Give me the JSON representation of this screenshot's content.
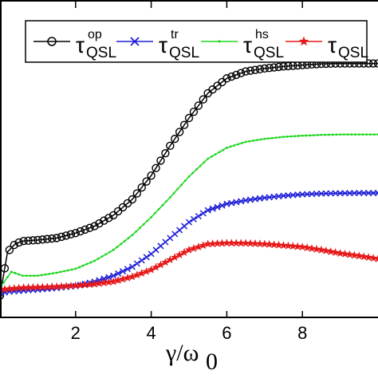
{
  "chart_data": {
    "type": "line",
    "title": "",
    "xlabel": "γ/ω0",
    "ylabel": "",
    "xlim": [
      0,
      10
    ],
    "xticks": [
      "2",
      "4",
      "6",
      "8"
    ],
    "grid": false,
    "legend_position": "top",
    "series": [
      {
        "name": "τQSL^op",
        "color": "#000000",
        "marker": "circle",
        "x": [
          0.0,
          0.2,
          0.4,
          0.6,
          1.0,
          1.5,
          2.0,
          2.5,
          3.0,
          3.5,
          4.0,
          4.5,
          5.0,
          5.5,
          6.0,
          6.5,
          7.0,
          7.5,
          8.0,
          8.5,
          9.0,
          9.5,
          10.0
        ],
        "y": [
          0.36,
          0.58,
          0.62,
          0.635,
          0.64,
          0.65,
          0.675,
          0.71,
          0.765,
          0.845,
          0.965,
          1.115,
          1.255,
          1.38,
          1.455,
          1.49,
          1.505,
          1.515,
          1.522,
          1.528,
          1.53,
          1.53,
          1.53
        ]
      },
      {
        "name": "τQSL^tr",
        "color": "#1f1fd6",
        "marker": "x",
        "x": [
          0.0,
          0.2,
          0.4,
          0.6,
          1.0,
          1.5,
          2.0,
          2.5,
          3.0,
          3.5,
          4.0,
          4.5,
          5.0,
          5.5,
          6.0,
          6.5,
          7.0,
          7.5,
          8.0,
          8.5,
          9.0,
          9.5,
          10.0
        ],
        "y": [
          0.37,
          0.38,
          0.382,
          0.385,
          0.39,
          0.398,
          0.408,
          0.43,
          0.46,
          0.505,
          0.57,
          0.65,
          0.73,
          0.79,
          0.822,
          0.84,
          0.853,
          0.863,
          0.87,
          0.874,
          0.876,
          0.877,
          0.877
        ]
      },
      {
        "name": "τQSL^hs",
        "color": "#1fd61f",
        "marker": "dot",
        "x": [
          0.0,
          0.3,
          0.6,
          1.0,
          1.5,
          2.0,
          2.5,
          3.0,
          3.5,
          4.0,
          4.5,
          5.0,
          5.5,
          6.0,
          6.5,
          7.0,
          7.5,
          8.0,
          8.5,
          9.0,
          9.5,
          10.0
        ],
        "y": [
          0.4,
          0.48,
          0.46,
          0.46,
          0.475,
          0.495,
          0.535,
          0.59,
          0.665,
          0.755,
          0.855,
          0.96,
          1.05,
          1.105,
          1.135,
          1.15,
          1.16,
          1.166,
          1.17,
          1.172,
          1.172,
          1.172
        ]
      },
      {
        "name": "τQSL",
        "color": "#e61a1a",
        "marker": "star",
        "x": [
          0.0,
          0.3,
          0.6,
          1.0,
          1.5,
          2.0,
          2.5,
          3.0,
          3.5,
          4.0,
          4.5,
          5.0,
          5.5,
          6.0,
          6.5,
          7.0,
          7.5,
          8.0,
          8.5,
          9.0,
          9.5,
          10.0
        ],
        "y": [
          0.39,
          0.395,
          0.4,
          0.402,
          0.405,
          0.41,
          0.418,
          0.43,
          0.455,
          0.49,
          0.54,
          0.59,
          0.62,
          0.625,
          0.624,
          0.62,
          0.613,
          0.605,
          0.59,
          0.573,
          0.56,
          0.545
        ]
      }
    ]
  },
  "legend": {
    "items": [
      {
        "tau": "τ",
        "sub": "QSL",
        "sup": "op"
      },
      {
        "tau": "τ",
        "sub": "QSL",
        "sup": "tr"
      },
      {
        "tau": "τ",
        "sub": "QSL",
        "sup": "hs"
      },
      {
        "tau": "τ",
        "sub": "QSL",
        "sup": ""
      }
    ]
  },
  "axis": {
    "x_label_main": "γ/ω",
    "x_label_sub": "0"
  }
}
